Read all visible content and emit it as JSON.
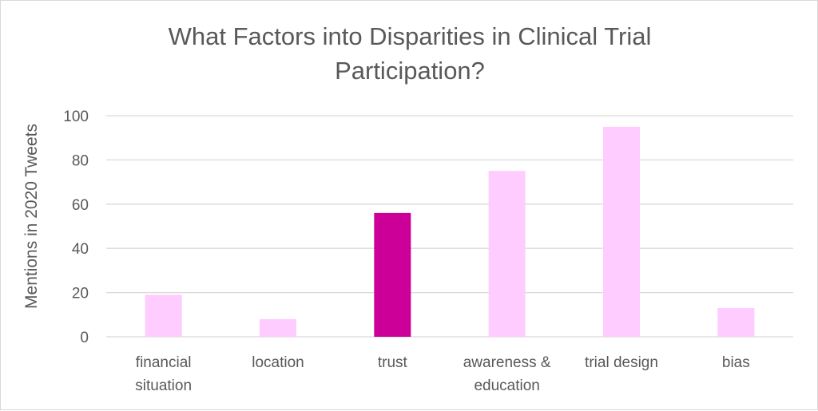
{
  "chart_data": {
    "type": "bar",
    "title": [
      "What Factors into Disparities in Clinical Trial",
      "Participation?"
    ],
    "ylabel": "Mentions in 2020 Tweets",
    "xlabel": "",
    "ylim": [
      0,
      100
    ],
    "yticks": [
      0,
      20,
      40,
      60,
      80,
      100
    ],
    "grid": true,
    "categories": [
      [
        "financial",
        "situation"
      ],
      [
        "location"
      ],
      [
        "trust"
      ],
      [
        "awareness &",
        "education"
      ],
      [
        "trial design"
      ],
      [
        "bias"
      ]
    ],
    "values": [
      19,
      8,
      56,
      75,
      95,
      13
    ],
    "colors": {
      "default_bar": "#ffccff",
      "highlight_bar": "#cc0099",
      "gridline": "#d9d9d9",
      "text": "#595959"
    },
    "highlight_index": 2
  }
}
